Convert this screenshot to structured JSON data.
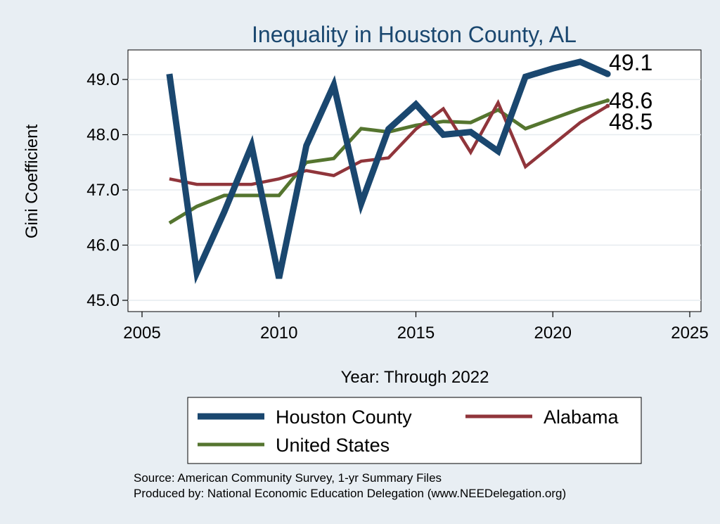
{
  "chart_data": {
    "type": "line",
    "title": "Inequality in Houston County, AL",
    "xlabel": "Year: Through 2022",
    "ylabel": "Gini Coefficient",
    "xlim": [
      2005,
      2025
    ],
    "ylim": [
      45.0,
      49.6
    ],
    "x_ticks": [
      2005,
      2010,
      2015,
      2020,
      2025
    ],
    "x_tick_labels": [
      "2005",
      "2010",
      "2015",
      "2020",
      "2025"
    ],
    "y_ticks": [
      45.0,
      46.0,
      47.0,
      48.0,
      49.0
    ],
    "y_tick_labels": [
      "45.0",
      "46.0",
      "47.0",
      "48.0",
      "49.0"
    ],
    "grid": true,
    "legend_position": "bottom",
    "x": [
      2006,
      2007,
      2008,
      2009,
      2010,
      2011,
      2012,
      2013,
      2014,
      2015,
      2016,
      2017,
      2018,
      2019,
      2020,
      2021,
      2022
    ],
    "series": [
      {
        "name": "Houston County",
        "color": "#1a476f",
        "end_label": "49.1",
        "values": [
          49.1,
          45.5,
          46.6,
          47.8,
          45.4,
          47.8,
          48.9,
          46.75,
          48.1,
          48.55,
          48.0,
          48.05,
          47.7,
          49.05,
          49.2,
          49.32,
          49.1
        ]
      },
      {
        "name": "Alabama",
        "color": "#90353b",
        "end_label": "48.5",
        "values": [
          47.2,
          47.1,
          47.1,
          47.1,
          47.2,
          47.35,
          47.26,
          47.52,
          47.58,
          48.1,
          48.47,
          47.68,
          48.58,
          47.42,
          47.82,
          48.22,
          48.52
        ]
      },
      {
        "name": "United States",
        "color": "#55752f",
        "end_label": "48.6",
        "values": [
          46.4,
          46.7,
          46.9,
          46.9,
          46.9,
          47.5,
          47.57,
          48.11,
          48.05,
          48.17,
          48.24,
          48.22,
          48.45,
          48.11,
          48.29,
          48.47,
          48.62
        ]
      }
    ],
    "source_lines": [
      "Source: American Community Survey, 1-yr Summary Files",
      "Produced by: National Economic Education Delegation (www.NEEDelegation.org)"
    ]
  }
}
